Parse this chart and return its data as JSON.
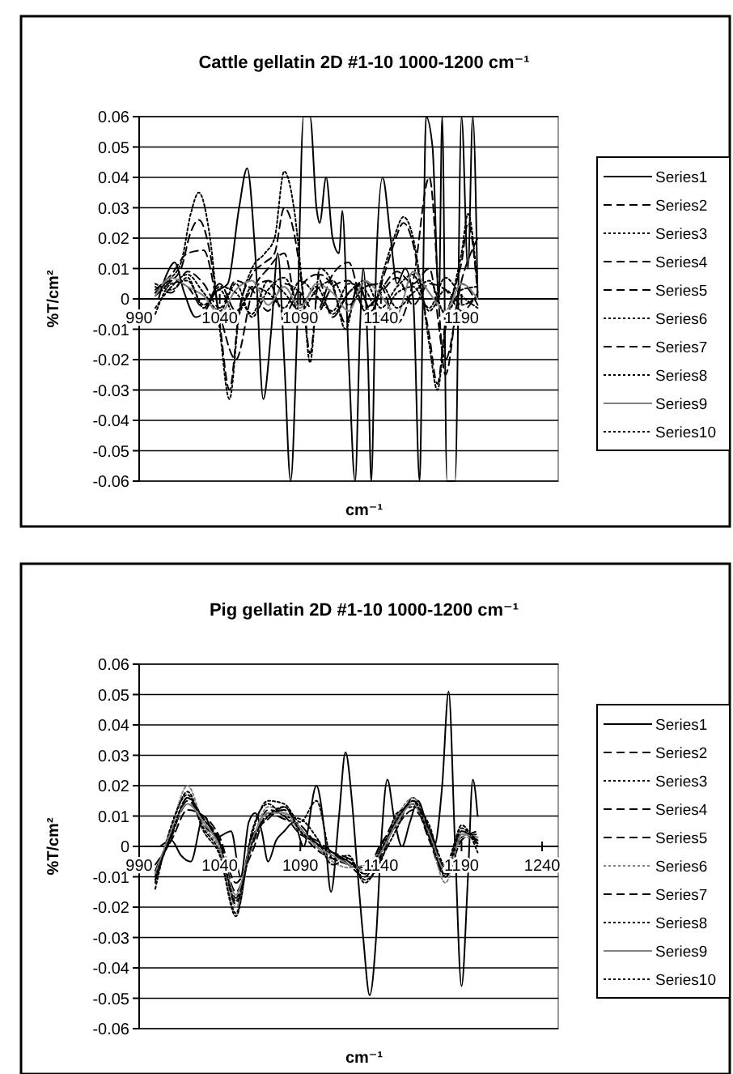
{
  "chart_data": [
    {
      "type": "line",
      "title": "Cattle gellatin 2D #1-10 1000-1200 cm⁻¹",
      "xlabel": "cm⁻¹",
      "ylabel": "%T/cm²",
      "x": [
        1000,
        1010,
        1020,
        1030,
        1040,
        1050,
        1060,
        1070,
        1080,
        1090,
        1100,
        1110,
        1120,
        1130,
        1140,
        1150,
        1160,
        1170,
        1180,
        1190,
        1200
      ],
      "xlim": [
        990,
        1250
      ],
      "xticks": [
        990,
        1040,
        1090,
        1140,
        1190
      ],
      "ylim": [
        -0.06,
        0.06
      ],
      "yticks": [
        -0.06,
        -0.05,
        -0.04,
        -0.03,
        -0.02,
        -0.01,
        0,
        0.01,
        0.02,
        0.03,
        0.04,
        0.05,
        0.06
      ],
      "grid": "y",
      "legend": "right",
      "series": [
        {
          "name": "Series1",
          "color": "#000000",
          "line_style": "solid",
          "x": [
            1002,
            1007,
            1012,
            1018,
            1025,
            1031,
            1037,
            1045,
            1052,
            1057,
            1062,
            1067,
            1072,
            1076,
            1080,
            1084,
            1088,
            1092,
            1096,
            1100,
            1102,
            1106,
            1110,
            1114,
            1116,
            1120,
            1124,
            1127,
            1129,
            1132,
            1134,
            1137,
            1141,
            1146,
            1150,
            1155,
            1160,
            1164,
            1166,
            1168,
            1172,
            1176,
            1178,
            1181,
            1186,
            1190,
            1194,
            1197,
            1200
          ],
          "values": [
            0,
            0.008,
            0.012,
            0.002,
            -0.006,
            -0.004,
            0.002,
            0.005,
            0.03,
            0.043,
            0.015,
            -0.033,
            -0.01,
            0.015,
            -0.02,
            -0.06,
            -0.01,
            0.06,
            0.06,
            0.03,
            0.025,
            0.04,
            0.02,
            0.015,
            0.029,
            -0.02,
            -0.06,
            -0.01,
            0.01,
            -0.02,
            -0.06,
            0.01,
            0.04,
            0.02,
            0.005,
            0.01,
            0,
            -0.06,
            0,
            0.06,
            0.05,
            0,
            0.06,
            -0.06,
            -0.06,
            0.06,
            0.01,
            0.06,
            0
          ]
        },
        {
          "name": "Series2",
          "color": "#000000",
          "line_style": "dashed",
          "values": [
            0.002,
            0.006,
            0.004,
            -0.003,
            0.005,
            -0.004,
            0.003,
            0.006,
            -0.005,
            0.004,
            0.008,
            -0.006,
            0.002,
            0.005,
            0.004,
            -0.008,
            0.006,
            0.04,
            -0.025,
            0.005,
            -0.002
          ]
        },
        {
          "name": "Series3",
          "color": "#000000",
          "line_style": "dotted",
          "x": [
            1000,
            1008,
            1016,
            1022,
            1027,
            1034,
            1040,
            1046,
            1052,
            1060,
            1068,
            1074,
            1080,
            1086,
            1092,
            1096,
            1102,
            1110,
            1118,
            1126,
            1134,
            1142,
            1148,
            1154,
            1160,
            1166,
            1170,
            1175,
            1180,
            1186,
            1190,
            1194,
            1200
          ],
          "values": [
            0.002,
            0.006,
            0.012,
            0.028,
            0.035,
            0.02,
            -0.01,
            -0.033,
            -0.005,
            0.01,
            0.015,
            0.02,
            0.042,
            0.03,
            0.0,
            -0.021,
            0.01,
            0.005,
            -0.01,
            0.005,
            -0.005,
            0.01,
            0.02,
            0.027,
            0.02,
            0.0,
            -0.015,
            -0.03,
            -0.01,
            0.005,
            0.015,
            0.028,
            0.003
          ]
        },
        {
          "name": "Series4",
          "color": "#000000",
          "line_style": "dashed",
          "x": [
            1000,
            1008,
            1016,
            1022,
            1027,
            1034,
            1040,
            1046,
            1052,
            1060,
            1068,
            1074,
            1080,
            1086,
            1092,
            1096,
            1102,
            1110,
            1118,
            1126,
            1134,
            1142,
            1148,
            1154,
            1160,
            1166,
            1170,
            1175,
            1180,
            1186,
            1190,
            1194,
            1200
          ],
          "values": [
            0.001,
            0.005,
            0.01,
            0.022,
            0.026,
            0.015,
            -0.008,
            -0.03,
            -0.004,
            0.008,
            0.012,
            0.015,
            0.03,
            0.022,
            0.0,
            -0.018,
            0.008,
            0.004,
            -0.008,
            0.004,
            -0.004,
            0.008,
            0.018,
            0.025,
            0.018,
            0.0,
            -0.012,
            -0.028,
            -0.008,
            0.004,
            0.012,
            0.025,
            0.002
          ]
        },
        {
          "name": "Series5",
          "color": "#000000",
          "line_style": "dashed",
          "values": [
            0.003,
            0.008,
            0.015,
            0.016,
            -0.005,
            -0.02,
            0.002,
            0.01,
            0.015,
            -0.008,
            -0.005,
            0.008,
            0.012,
            -0.004,
            0.003,
            0.009,
            0.005,
            0.01,
            -0.02,
            0.006,
            0.02
          ]
        },
        {
          "name": "Series6",
          "color": "#000000",
          "line_style": "dotted",
          "values": [
            -0.003,
            0.004,
            0.008,
            0.002,
            -0.004,
            0.005,
            -0.006,
            0.003,
            0.007,
            -0.002,
            0.004,
            -0.005,
            0.002,
            0.006,
            -0.003,
            0.004,
            0.008,
            -0.004,
            0.003,
            -0.002,
            0.001
          ]
        },
        {
          "name": "Series7",
          "color": "#000000",
          "line_style": "dashed",
          "values": [
            0.004,
            0.002,
            0.009,
            0.005,
            -0.003,
            0.006,
            0.003,
            -0.004,
            0.005,
            0.002,
            -0.005,
            0.004,
            0.006,
            -0.003,
            0.002,
            0.007,
            -0.002,
            0.005,
            0.003,
            -0.004,
            0.002
          ]
        },
        {
          "name": "Series8",
          "color": "#000000",
          "line_style": "dotted",
          "values": [
            -0.005,
            0.005,
            0.006,
            -0.002,
            0.003,
            -0.006,
            0.004,
            0.002,
            -0.003,
            0.006,
            0.001,
            -0.004,
            0.005,
            0.003,
            -0.006,
            0.002,
            0.004,
            -0.003,
            0.007,
            0.001,
            -0.003
          ]
        },
        {
          "name": "Series9",
          "color": "#808080",
          "line_style": "solid",
          "values": [
            0.001,
            0.007,
            0.004,
            0.001,
            -0.005,
            0.003,
            0.006,
            -0.002,
            0.004,
            -0.003,
            0.005,
            0.002,
            -0.004,
            0.006,
            0.001,
            -0.005,
            0.009,
            0.002,
            -0.004,
            0.005,
            0.0
          ]
        },
        {
          "name": "Series10",
          "color": "#000000",
          "line_style": "dotted",
          "values": [
            0.005,
            0.003,
            0.007,
            -0.003,
            0.004,
            0.002,
            -0.005,
            0.006,
            0.002,
            -0.004,
            0.003,
            0.006,
            -0.002,
            0.004,
            0.005,
            -0.003,
            0.002,
            0.006,
            -0.005,
            0.003,
            0.004
          ]
        }
      ]
    },
    {
      "type": "line",
      "title": "Pig gellatin 2D #1-10 1000-1200 cm⁻¹",
      "xlabel": "cm⁻¹",
      "ylabel": "%T/cm²",
      "x": [
        1000,
        1010,
        1020,
        1030,
        1040,
        1050,
        1060,
        1070,
        1080,
        1090,
        1100,
        1110,
        1120,
        1130,
        1140,
        1150,
        1160,
        1170,
        1180,
        1190,
        1200
      ],
      "xlim": [
        990,
        1250
      ],
      "xticks": [
        990,
        1040,
        1090,
        1140,
        1190,
        1240
      ],
      "ylim": [
        -0.06,
        0.06
      ],
      "yticks": [
        -0.06,
        -0.05,
        -0.04,
        -0.03,
        -0.02,
        -0.01,
        0,
        0.01,
        0.02,
        0.03,
        0.04,
        0.05,
        0.06
      ],
      "grid": "y",
      "legend": "right",
      "series": [
        {
          "name": "Series1",
          "color": "#000000",
          "line_style": "solid",
          "x": [
            1003,
            1010,
            1016,
            1022,
            1030,
            1038,
            1047,
            1053,
            1058,
            1062,
            1066,
            1070,
            1075,
            1080,
            1086,
            1092,
            1100,
            1105,
            1109,
            1114,
            1118,
            1122,
            1125,
            1129,
            1133,
            1137,
            1140,
            1144,
            1148,
            1153,
            1158,
            1163,
            1168,
            1173,
            1178,
            1182,
            1186,
            1190,
            1194,
            1197,
            1200
          ],
          "values": [
            0,
            0.002,
            -0.003,
            -0.005,
            0.01,
            0.003,
            0.005,
            -0.01,
            0.008,
            0.011,
            0.005,
            -0.005,
            0.002,
            0.005,
            0.008,
            0.0,
            0.02,
            0.005,
            -0.015,
            0.01,
            0.031,
            0.015,
            -0.005,
            -0.03,
            -0.049,
            -0.03,
            0.0,
            0.022,
            0.01,
            0.0,
            0.008,
            0.015,
            0.008,
            0.0,
            0.02,
            0.051,
            0.0,
            -0.046,
            -0.01,
            0.022,
            0.01
          ]
        },
        {
          "name": "Series2",
          "color": "#000000",
          "line_style": "dashed",
          "values": [
            -0.008,
            0.004,
            0.014,
            0.009,
            0.002,
            -0.015,
            0.0,
            0.012,
            0.01,
            0.004,
            0.002,
            -0.002,
            -0.006,
            -0.01,
            0.0,
            0.01,
            0.014,
            0.002,
            -0.01,
            0.002,
            0.005
          ]
        },
        {
          "name": "Series3",
          "color": "#000000",
          "line_style": "dotted",
          "values": [
            -0.012,
            0.006,
            0.018,
            0.006,
            -0.002,
            -0.022,
            0.004,
            0.015,
            0.014,
            0.008,
            0.015,
            -0.004,
            -0.003,
            -0.012,
            -0.004,
            0.006,
            0.016,
            0.006,
            -0.006,
            0.006,
            0.0
          ]
        },
        {
          "name": "Series4",
          "color": "#000000",
          "line_style": "dashed",
          "values": [
            -0.009,
            0.003,
            0.016,
            0.007,
            0.001,
            -0.017,
            0.003,
            0.009,
            0.013,
            0.005,
            -0.001,
            -0.004,
            -0.006,
            -0.007,
            -0.003,
            0.009,
            0.014,
            0.003,
            -0.009,
            0.003,
            0.004
          ]
        },
        {
          "name": "Series5",
          "color": "#000000",
          "line_style": "dashed",
          "values": [
            -0.006,
            0.002,
            0.012,
            0.01,
            0.003,
            -0.012,
            -0.002,
            0.011,
            0.009,
            0.007,
            0.001,
            -0.002,
            -0.004,
            -0.009,
            0.001,
            0.007,
            0.012,
            0.005,
            -0.007,
            0.005,
            0.001
          ]
        },
        {
          "name": "Series6",
          "color": "#808080",
          "line_style": "dotted",
          "values": [
            -0.01,
            0.006,
            0.02,
            0.007,
            -0.001,
            -0.02,
            0.001,
            0.013,
            0.011,
            0.005,
            0.0,
            -0.005,
            -0.007,
            -0.006,
            -0.001,
            0.01,
            0.016,
            0.004,
            -0.012,
            0.003,
            0.003
          ]
        },
        {
          "name": "Series7",
          "color": "#000000",
          "line_style": "dashed",
          "values": [
            -0.011,
            0.004,
            0.015,
            0.009,
            0.001,
            -0.019,
            0.002,
            0.01,
            0.012,
            0.006,
            0.001,
            -0.003,
            -0.005,
            -0.008,
            -0.002,
            0.008,
            0.015,
            0.005,
            -0.008,
            0.004,
            0.002
          ]
        },
        {
          "name": "Series8",
          "color": "#000000",
          "line_style": "dotted",
          "values": [
            -0.014,
            0.007,
            0.017,
            0.005,
            -0.003,
            -0.023,
            0.005,
            0.014,
            0.01,
            0.009,
            0.003,
            -0.006,
            -0.004,
            -0.011,
            -0.005,
            0.011,
            0.013,
            0.007,
            -0.01,
            0.007,
            -0.002
          ]
        },
        {
          "name": "Series9",
          "color": "#808080",
          "line_style": "solid",
          "values": [
            -0.009,
            0.005,
            0.014,
            0.008,
            0.0,
            -0.016,
            0.002,
            0.011,
            0.011,
            0.006,
            0.0,
            -0.003,
            -0.006,
            -0.008,
            -0.002,
            0.008,
            0.014,
            0.004,
            -0.008,
            0.004,
            0.003
          ]
        },
        {
          "name": "Series10",
          "color": "#000000",
          "line_style": "dotted",
          "values": [
            -0.01,
            0.004,
            0.016,
            0.009,
            0.001,
            -0.018,
            0.001,
            0.01,
            0.013,
            0.005,
            0.001,
            -0.002,
            -0.005,
            -0.009,
            -0.001,
            0.009,
            0.015,
            0.003,
            -0.009,
            0.005,
            0.002
          ]
        }
      ]
    }
  ]
}
